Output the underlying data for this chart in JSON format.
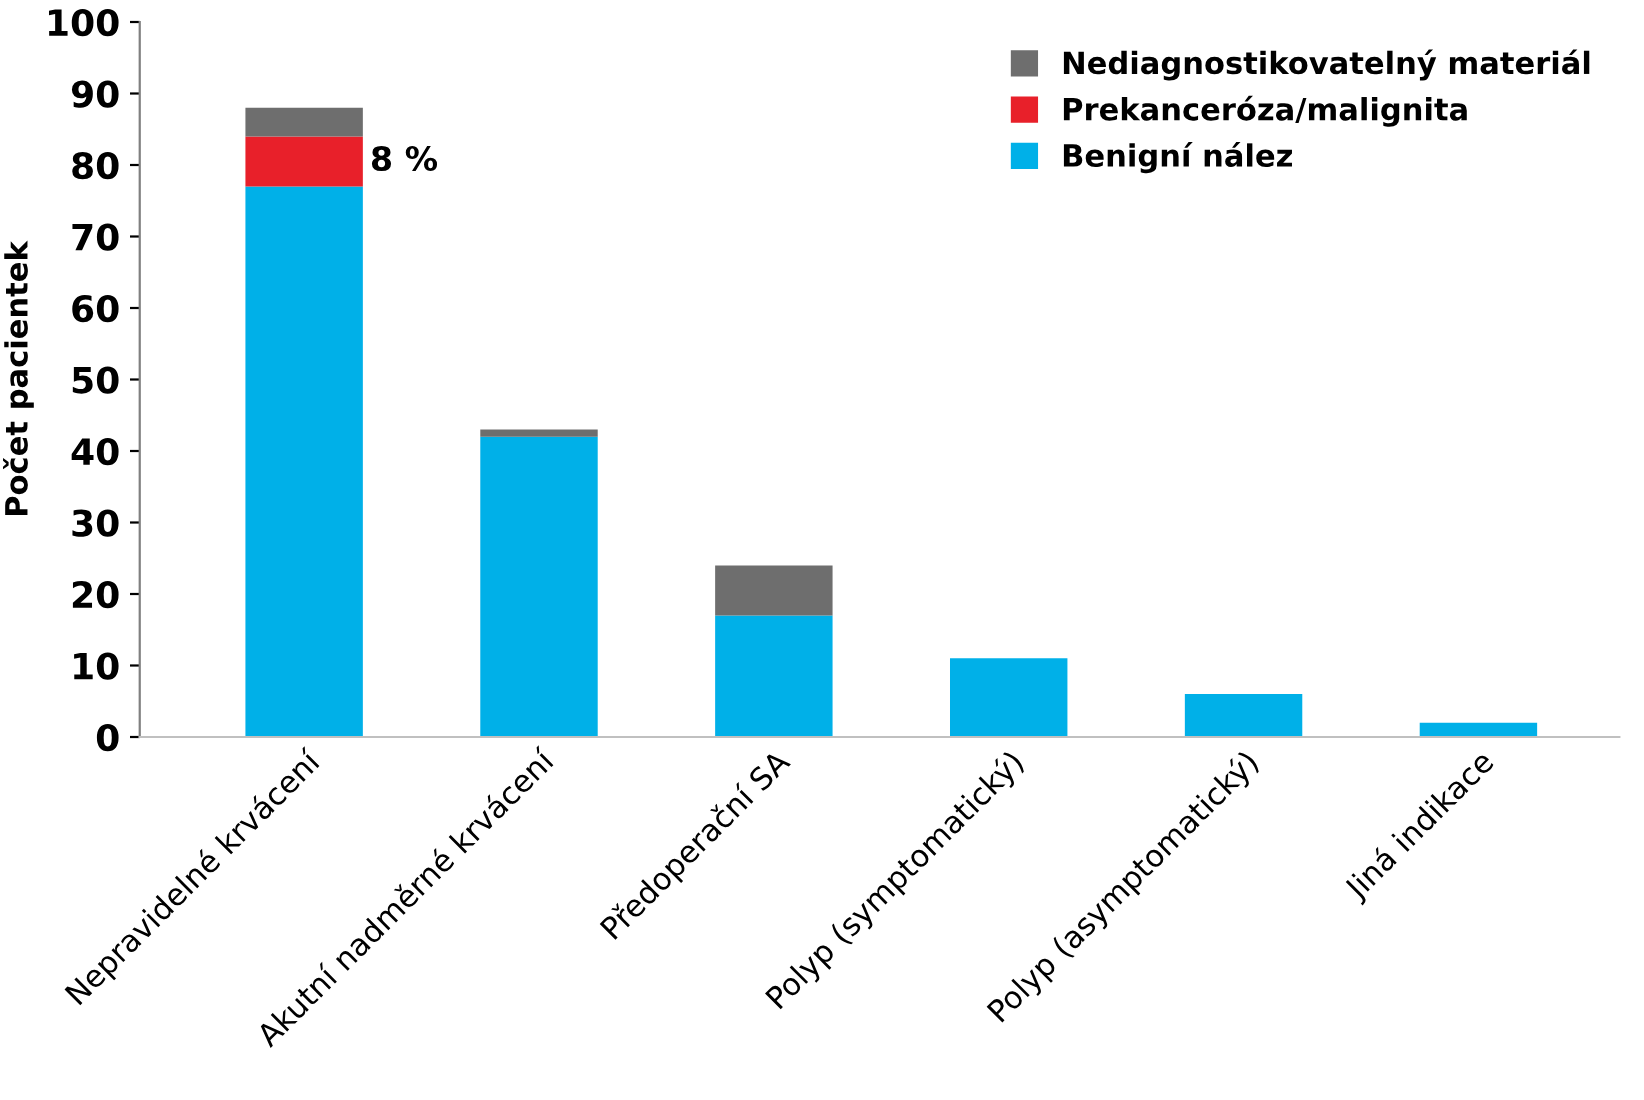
{
  "chart_data": {
    "type": "bar",
    "stacked": true,
    "ylabel": "Počet pacientek",
    "categories": [
      "Nepravidelné krvácení",
      "Akutní nadměrné krvácení",
      "Předoperační SA",
      "Polyp (symptomatický)",
      "Polyp (asymptomatický)",
      "Jiná indikace"
    ],
    "series": [
      {
        "name": "Benigní nález",
        "color": "#00b0e8",
        "values": [
          77,
          42,
          17,
          11,
          6,
          2
        ]
      },
      {
        "name": "Prekanceróza/malignita",
        "color": "#e8202a",
        "values": [
          7,
          0,
          0,
          0,
          0,
          0
        ]
      },
      {
        "name": "Nediagnostikovatelný materiál",
        "color": "#6e6e6e",
        "values": [
          4,
          1,
          7,
          0,
          0,
          0
        ]
      }
    ],
    "annotations": [
      "8 %"
    ],
    "ylim": [
      0,
      100
    ],
    "yticks": [
      0,
      10,
      20,
      30,
      40,
      50,
      60,
      70,
      80,
      90,
      100
    ],
    "grid": false,
    "legend": "top right"
  }
}
